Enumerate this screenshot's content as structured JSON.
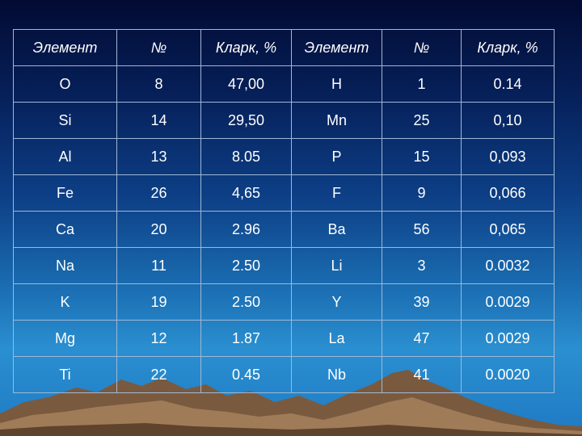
{
  "table": {
    "headers": [
      "Элемент",
      "№",
      "Кларк, %",
      "Элемент",
      "№",
      "Кларк, %"
    ],
    "rows": [
      [
        "O",
        "8",
        "47,00",
        "H",
        "1",
        "0.14"
      ],
      [
        "Si",
        "14",
        "29,50",
        "Mn",
        "25",
        "0,10"
      ],
      [
        "Al",
        "13",
        "8.05",
        "P",
        "15",
        "0,093"
      ],
      [
        "Fe",
        "26",
        "4,65",
        "F",
        "9",
        "0,066"
      ],
      [
        "Ca",
        "20",
        "2.96",
        "Ba",
        "56",
        "0,065"
      ],
      [
        "Na",
        "11",
        "2.50",
        "Li",
        "3",
        "0.0032"
      ],
      [
        "K",
        "19",
        "2.50",
        "Y",
        "39",
        "0.0029"
      ],
      [
        "Mg",
        "12",
        "1.87",
        "La",
        "47",
        "0.0029"
      ],
      [
        "Ti",
        "22",
        "0.45",
        "Nb",
        "41",
        "0.0020"
      ]
    ]
  },
  "colors": {
    "text": "#ffffff",
    "border": "#9fb8d6",
    "background_top": "#020b33",
    "background_bottom": "#2a8fd0",
    "mountains": "#8a6a4c"
  }
}
